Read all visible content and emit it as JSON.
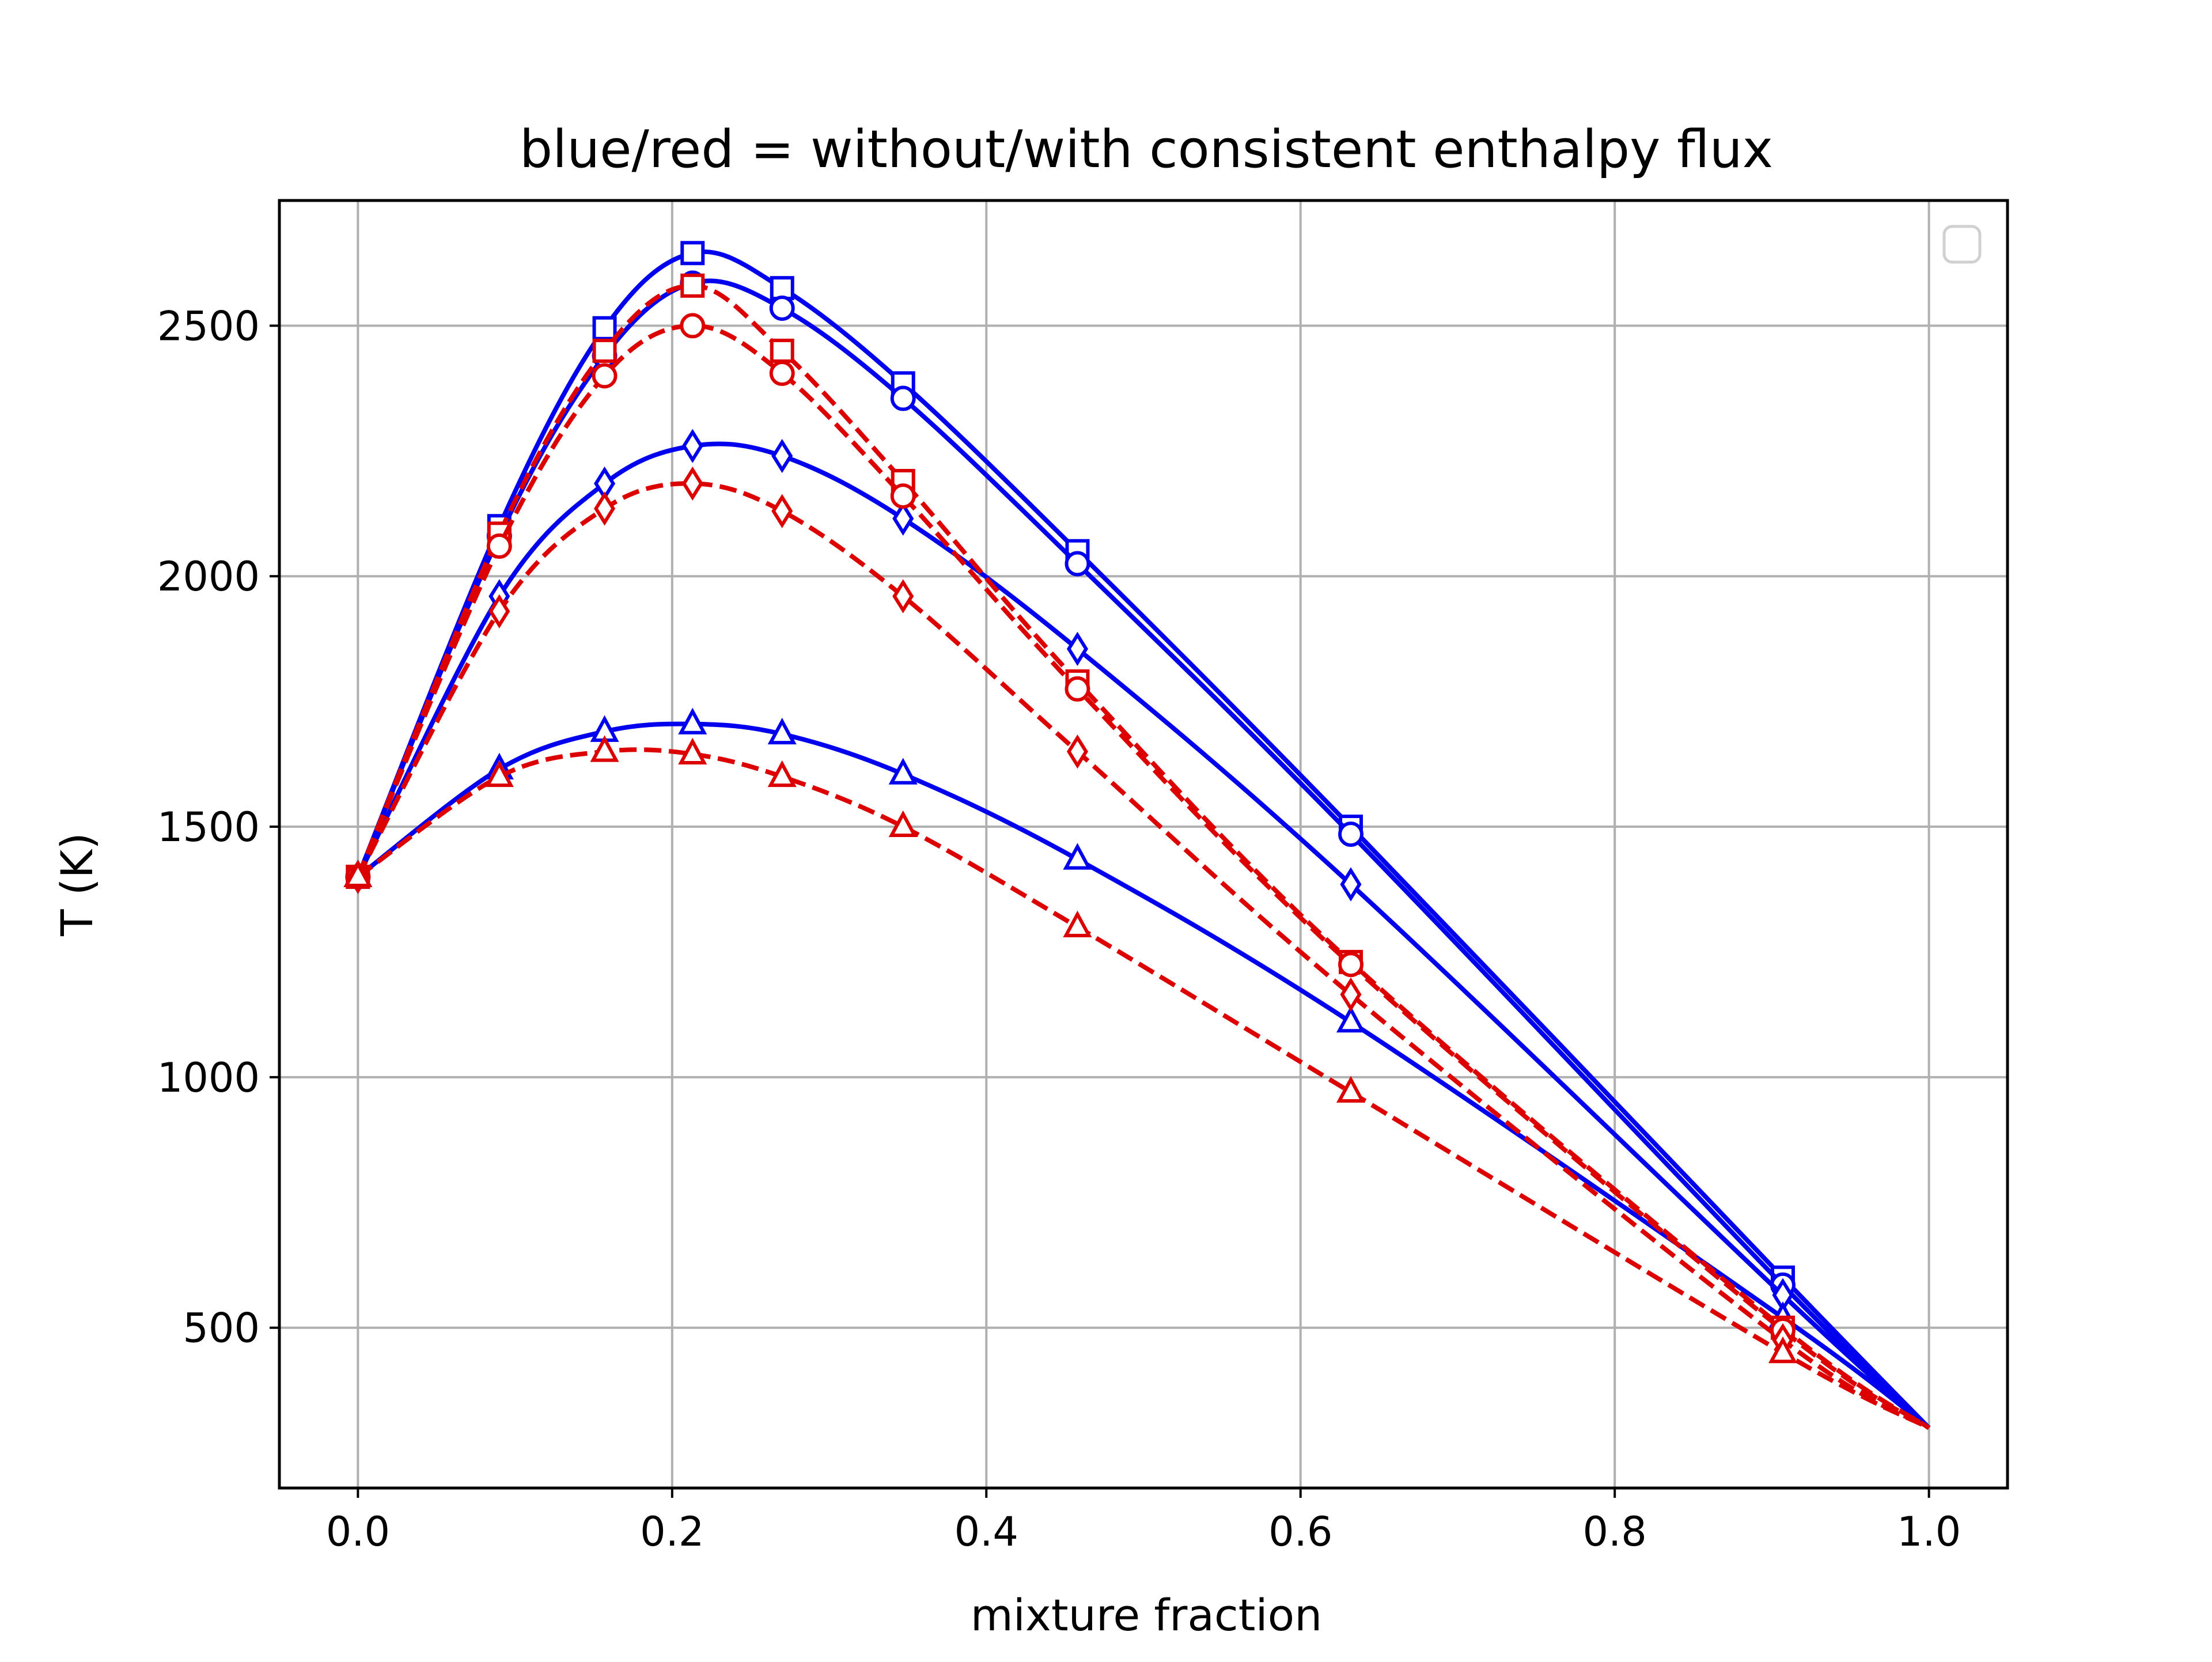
{
  "chart_data": {
    "type": "line",
    "title": "blue/red = without/with consistent enthalpy flux",
    "xlabel": "mixture fraction",
    "ylabel": "T (K)",
    "xlim": [
      -0.05,
      1.05
    ],
    "ylim": [
      180,
      2750
    ],
    "xticks": [
      0.0,
      0.2,
      0.4,
      0.6,
      0.8,
      1.0
    ],
    "xtick_labels": [
      "0.0",
      "0.2",
      "0.4",
      "0.6",
      "0.8",
      "1.0"
    ],
    "yticks": [
      500,
      1000,
      1500,
      2000,
      2500
    ],
    "ytick_labels": [
      "500",
      "1000",
      "1500",
      "2000",
      "2500"
    ],
    "grid": true,
    "legend": {
      "position": "upper-right",
      "entries": []
    },
    "colors": {
      "blue": "#0000ee",
      "red": "#dd0000"
    },
    "series": [
      {
        "color": "blue",
        "linestyle": "solid",
        "marker": "square",
        "x": [
          0.0,
          0.09,
          0.157,
          0.213,
          0.27,
          0.347,
          0.458,
          0.632,
          0.907,
          1.0
        ],
        "y": [
          1400,
          2100,
          2495,
          2645,
          2575,
          2385,
          2050,
          1500,
          600,
          300
        ]
      },
      {
        "color": "blue",
        "linestyle": "solid",
        "marker": "circle",
        "x": [
          0.0,
          0.09,
          0.157,
          0.213,
          0.27,
          0.347,
          0.458,
          0.632,
          0.907,
          1.0
        ],
        "y": [
          1400,
          2080,
          2440,
          2585,
          2535,
          2355,
          2025,
          1485,
          585,
          300
        ]
      },
      {
        "color": "blue",
        "linestyle": "solid",
        "marker": "diamond",
        "x": [
          0.0,
          0.09,
          0.157,
          0.213,
          0.27,
          0.347,
          0.458,
          0.632,
          0.907,
          1.0
        ],
        "y": [
          1400,
          1960,
          2185,
          2260,
          2240,
          2115,
          1855,
          1385,
          565,
          300
        ]
      },
      {
        "color": "blue",
        "linestyle": "solid",
        "marker": "triangle",
        "x": [
          0.0,
          0.09,
          0.157,
          0.213,
          0.27,
          0.347,
          0.458,
          0.632,
          0.907,
          1.0
        ],
        "y": [
          1400,
          1615,
          1690,
          1705,
          1685,
          1605,
          1435,
          1110,
          520,
          300
        ]
      },
      {
        "color": "red",
        "linestyle": "dashed",
        "marker": "square",
        "x": [
          0.0,
          0.09,
          0.157,
          0.213,
          0.27,
          0.347,
          0.458,
          0.632,
          0.907,
          1.0
        ],
        "y": [
          1400,
          2085,
          2450,
          2580,
          2450,
          2190,
          1790,
          1230,
          500,
          300
        ]
      },
      {
        "color": "red",
        "linestyle": "dashed",
        "marker": "circle",
        "x": [
          0.0,
          0.09,
          0.157,
          0.213,
          0.27,
          0.347,
          0.458,
          0.632,
          0.907,
          1.0
        ],
        "y": [
          1400,
          2060,
          2400,
          2500,
          2405,
          2160,
          1775,
          1225,
          495,
          300
        ]
      },
      {
        "color": "red",
        "linestyle": "dashed",
        "marker": "diamond",
        "x": [
          0.0,
          0.09,
          0.157,
          0.213,
          0.27,
          0.347,
          0.458,
          0.632,
          0.907,
          1.0
        ],
        "y": [
          1400,
          1930,
          2135,
          2185,
          2130,
          1960,
          1650,
          1165,
          475,
          300
        ]
      },
      {
        "color": "red",
        "linestyle": "dashed",
        "marker": "triangle",
        "x": [
          0.0,
          0.09,
          0.157,
          0.213,
          0.27,
          0.347,
          0.458,
          0.632,
          0.907,
          1.0
        ],
        "y": [
          1400,
          1600,
          1650,
          1645,
          1600,
          1500,
          1300,
          970,
          450,
          300
        ]
      }
    ]
  }
}
